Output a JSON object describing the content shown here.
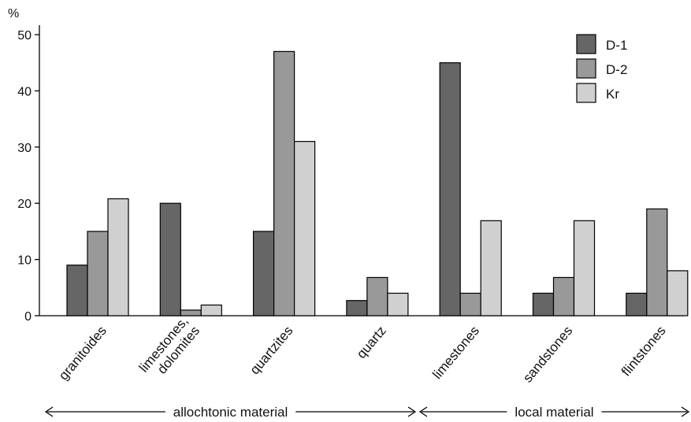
{
  "chart_data": {
    "type": "bar",
    "title": "",
    "xlabel": "",
    "ylabel": "%",
    "ylim": [
      0,
      50
    ],
    "yticks": [
      0,
      10,
      20,
      30,
      40,
      50
    ],
    "grid": false,
    "legend_position": "top-right",
    "categories": [
      [
        "granitoides"
      ],
      [
        "limestones,",
        "dolomites"
      ],
      [
        "quartzites"
      ],
      [
        "quartz"
      ],
      [
        "limestones"
      ],
      [
        "sandstones"
      ],
      [
        "flintstones"
      ]
    ],
    "series": [
      {
        "name": "D-1",
        "color": "#666666",
        "values": [
          9,
          20,
          15,
          2.7,
          45,
          4,
          4
        ]
      },
      {
        "name": "D-2",
        "color": "#999999",
        "values": [
          15,
          1,
          47,
          6.8,
          4,
          6.8,
          19
        ]
      },
      {
        "name": "Kr",
        "color": "#d0d0d0",
        "values": [
          20.8,
          1.9,
          31,
          4,
          16.9,
          16.9,
          8
        ]
      }
    ],
    "groups": [
      {
        "label": "allochtonic material",
        "categories": [
          0,
          1,
          2,
          3
        ]
      },
      {
        "label": "local material",
        "categories": [
          4,
          5,
          6
        ]
      }
    ]
  }
}
